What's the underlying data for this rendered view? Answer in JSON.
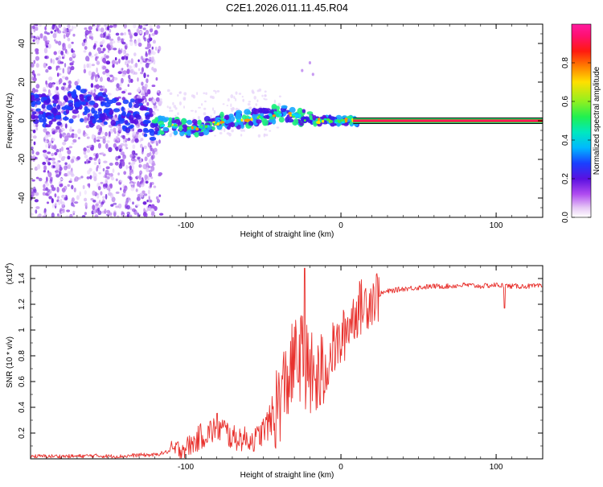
{
  "page": {
    "title": "C2E1.2026.011.11.45.R04"
  },
  "colors": {
    "background": "#ffffff",
    "axis": "#000000",
    "snr_line": "#e8322e",
    "band_edge": "#111111"
  },
  "chart_data": [
    {
      "type": "heatmap",
      "name": "spectrogram",
      "title": "C2E1.2026.011.11.45.R04",
      "xlabel": "Height of straight line (km)",
      "ylabel": "Frequency (Hz)",
      "xlim": [
        -200,
        130
      ],
      "ylim": [
        -50,
        50
      ],
      "x_ticks": [
        -100,
        0,
        100
      ],
      "y_ticks": [
        -40,
        -20,
        0,
        20,
        40
      ],
      "x_tick_labels": [
        "-100",
        "0",
        "100"
      ],
      "y_tick_labels": [
        "-40",
        "-20",
        "0",
        "20",
        "40"
      ],
      "signal_track": {
        "x": [
          -200,
          -190,
          -180,
          -170,
          -160,
          -150,
          -140,
          -130,
          -120,
          -110,
          -100,
          -90,
          -80,
          -70,
          -60,
          -50,
          -40,
          -35,
          -30,
          -25,
          -20,
          -15,
          -10,
          -5,
          0,
          5,
          10
        ],
        "freq": [
          8,
          5,
          4,
          10,
          4,
          7,
          2,
          3,
          -3,
          -2,
          -4,
          -4,
          -1,
          0,
          1,
          2,
          4,
          3,
          3,
          1,
          1,
          0,
          0,
          0,
          0,
          0,
          0
        ]
      },
      "carrier_line": {
        "from_x": 10,
        "to_x": 130,
        "freq": 0
      },
      "colorbar": {
        "label": "Normalized spectral amplitude",
        "range": [
          0,
          1
        ],
        "ticks": [
          0.0,
          0.2,
          0.4,
          0.6,
          0.8
        ],
        "tick_labels": [
          "0.0",
          "0.2",
          "0.4",
          "0.6",
          "0.8"
        ]
      }
    },
    {
      "type": "line",
      "name": "snr",
      "xlabel": "Height of straight line (km)",
      "ylabel": "SNR (10 * v/v)",
      "y_multiplier": "(x10",
      "y_multiplier_exp": "4",
      "y_multiplier_close": ")",
      "xlim": [
        -200,
        130
      ],
      "ylim": [
        0,
        1.5
      ],
      "x_ticks": [
        -100,
        0,
        100
      ],
      "y_ticks": [
        0.2,
        0.4,
        0.6,
        0.8,
        1.0,
        1.2,
        1.4
      ],
      "x_tick_labels": [
        "-100",
        "0",
        "100"
      ],
      "y_tick_labels": [
        "0.2",
        "0.4",
        "0.6",
        "0.8",
        "1",
        "1.2",
        "1.4"
      ],
      "series": [
        {
          "name": "SNR",
          "x": [
            -200,
            -190,
            -180,
            -170,
            -160,
            -150,
            -140,
            -130,
            -120,
            -110,
            -100,
            -95,
            -90,
            -85,
            -80,
            -75,
            -70,
            -65,
            -60,
            -55,
            -50,
            -45,
            -40,
            -35,
            -30,
            -25,
            -20,
            -15,
            -10,
            -5,
            0,
            5,
            10,
            15,
            20,
            25,
            30,
            35,
            40,
            50,
            60,
            70,
            80,
            90,
            100,
            110,
            120,
            130
          ],
          "values": [
            0.02,
            0.02,
            0.02,
            0.02,
            0.025,
            0.02,
            0.02,
            0.03,
            0.03,
            0.06,
            0.09,
            0.12,
            0.18,
            0.2,
            0.25,
            0.22,
            0.16,
            0.16,
            0.15,
            0.15,
            0.22,
            0.3,
            0.45,
            0.6,
            0.75,
            0.8,
            0.65,
            0.6,
            0.7,
            0.85,
            0.9,
            1.05,
            1.15,
            1.2,
            1.25,
            1.28,
            1.3,
            1.31,
            1.32,
            1.33,
            1.34,
            1.34,
            1.35,
            1.34,
            1.35,
            1.34,
            1.34,
            1.34
          ]
        }
      ]
    }
  ]
}
